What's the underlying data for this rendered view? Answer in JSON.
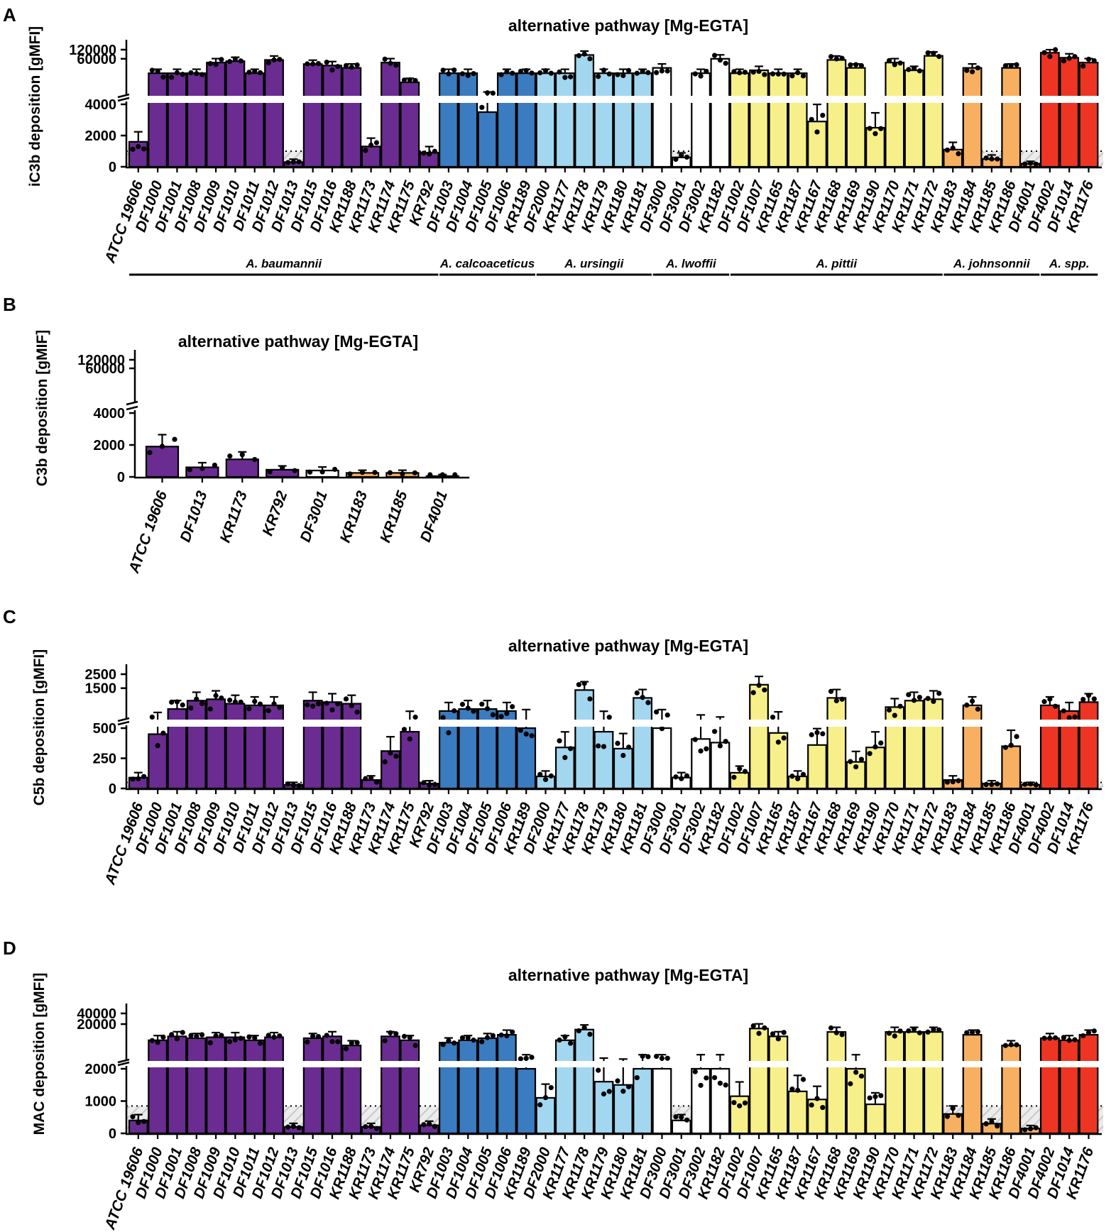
{
  "colors": {
    "baumannii": "#6a2c91",
    "calcoaceticus": "#3b7bc0",
    "ursingii": "#a3d7f0",
    "lwoffii": "#ffffff",
    "pittii": "#f7f08a",
    "johnsonnii": "#f7b062",
    "spp": "#ee3524",
    "axis": "#000000",
    "shade": "#d8d8d8"
  },
  "panels": [
    {
      "letter": "A"
    },
    {
      "letter": "B"
    },
    {
      "letter": "C"
    },
    {
      "letter": "D"
    }
  ],
  "species_groups": [
    {
      "name": "A. baumannii",
      "first": 0,
      "last": 15
    },
    {
      "name": "A. calcoaceticus",
      "first": 16,
      "last": 20
    },
    {
      "name": "A. ursingii",
      "first": 21,
      "last": 26
    },
    {
      "name": "A. lwoffii",
      "first": 27,
      "last": 30
    },
    {
      "name": "A. pittii",
      "first": 31,
      "last": 41
    },
    {
      "name": "A. johnsonnii",
      "first": 42,
      "last": 46
    },
    {
      "name": "A. spp.",
      "first": 47,
      "last": 49
    }
  ],
  "chart_data": [
    {
      "type": "bar",
      "panel": "A",
      "title": "alternative pathway [Mg-EGTA]",
      "xlabel": "",
      "ylabel": "iC3b deposition [gMFI]",
      "axis_break": true,
      "lower_ticks": [
        0,
        2000,
        4000
      ],
      "upper_ticks": [
        60000,
        120000
      ],
      "threshold": 1000,
      "species_labels_shown": true,
      "categories": [
        "ATCC 19606",
        "DF1000",
        "DF1001",
        "DF1008",
        "DF1009",
        "DF1010",
        "DF1011",
        "DF1012",
        "DF1013",
        "DF1015",
        "DF1016",
        "KR1188",
        "KR1173",
        "KR1174",
        "KR1175",
        "KR792",
        "DF1003",
        "DF1004",
        "DF1005",
        "DF1006",
        "KR1189",
        "DF2000",
        "KR1177",
        "KR1178",
        "KR1179",
        "KR1180",
        "KR1181",
        "DF3000",
        "DF3001",
        "DF3002",
        "KR1182",
        "DF1002",
        "DF1007",
        "KR1165",
        "KR1187",
        "KR1167",
        "KR1168",
        "KR1169",
        "KR1190",
        "KR1170",
        "KR1171",
        "KR1172",
        "KR1183",
        "KR1184",
        "KR1185",
        "KR1186",
        "DF4001",
        "DF4002",
        "DF1014",
        "KR1176"
      ],
      "group": [
        "baumannii",
        "baumannii",
        "baumannii",
        "baumannii",
        "baumannii",
        "baumannii",
        "baumannii",
        "baumannii",
        "baumannii",
        "baumannii",
        "baumannii",
        "baumannii",
        "baumannii",
        "baumannii",
        "baumannii",
        "baumannii",
        "calcoaceticus",
        "calcoaceticus",
        "calcoaceticus",
        "calcoaceticus",
        "calcoaceticus",
        "ursingii",
        "ursingii",
        "ursingii",
        "ursingii",
        "ursingii",
        "ursingii",
        "lwoffii",
        "lwoffii",
        "lwoffii",
        "lwoffii",
        "pittii",
        "pittii",
        "pittii",
        "pittii",
        "pittii",
        "pittii",
        "pittii",
        "pittii",
        "pittii",
        "pittii",
        "pittii",
        "johnsonnii",
        "johnsonnii",
        "johnsonnii",
        "johnsonnii",
        "johnsonnii",
        "spp",
        "spp",
        "spp"
      ],
      "values": [
        1600,
        20000,
        20000,
        20000,
        45000,
        50000,
        20000,
        55000,
        300,
        40000,
        36000,
        30000,
        1300,
        45000,
        10000,
        900,
        20000,
        20000,
        3500,
        20000,
        20000,
        20000,
        20000,
        80000,
        20000,
        20000,
        20000,
        30000,
        600,
        20000,
        60000,
        20000,
        25000,
        20000,
        20000,
        2900,
        55000,
        30000,
        2500,
        45000,
        25000,
        75000,
        1100,
        30000,
        500,
        30000,
        200,
        95000,
        65000,
        45000
      ]
    },
    {
      "type": "bar",
      "panel": "B",
      "title": "alternative pathway [Mg-EGTA]",
      "xlabel": "",
      "ylabel": "C3b deposition [gMIF]",
      "axis_break": true,
      "lower_ticks": [
        0,
        2000,
        4000
      ],
      "upper_ticks": [
        60000,
        120000
      ],
      "categories": [
        "ATCC 19606",
        "DF1013",
        "KR1173",
        "KR792",
        "DF3001",
        "KR1183",
        "KR1185",
        "DF4001"
      ],
      "group": [
        "baumannii",
        "baumannii",
        "baumannii",
        "baumannii",
        "lwoffii",
        "johnsonnii",
        "johnsonnii",
        "johnsonnii"
      ],
      "values": [
        1900,
        600,
        1100,
        450,
        400,
        250,
        250,
        50
      ]
    },
    {
      "type": "bar",
      "panel": "C",
      "title": "alternative pathway [Mg-EGTA]",
      "xlabel": "",
      "ylabel": "C5b deposition [gMFI]",
      "axis_break": true,
      "lower_ticks": [
        0,
        250,
        500
      ],
      "upper_ticks": [
        1500,
        2500
      ],
      "threshold": 50,
      "categories": [
        "ATCC 19606",
        "DF1000",
        "DF1001",
        "DF1008",
        "DF1009",
        "DF1010",
        "DF1011",
        "DF1012",
        "DF1013",
        "DF1015",
        "DF1016",
        "KR1188",
        "KR1173",
        "KR1174",
        "KR1175",
        "KR792",
        "DF1003",
        "DF1004",
        "DF1005",
        "DF1006",
        "KR1189",
        "DF2000",
        "KR1177",
        "KR1178",
        "KR1179",
        "KR1180",
        "KR1181",
        "DF3000",
        "DF3001",
        "DF3002",
        "KR1182",
        "DF1002",
        "DF1007",
        "KR1165",
        "KR1187",
        "KR1167",
        "KR1168",
        "KR1169",
        "KR1190",
        "KR1170",
        "KR1171",
        "KR1172",
        "KR1183",
        "KR1184",
        "KR1185",
        "KR1186",
        "DF4001",
        "DF4002",
        "DF1014",
        "KR1176"
      ],
      "group": [
        "baumannii",
        "baumannii",
        "baumannii",
        "baumannii",
        "baumannii",
        "baumannii",
        "baumannii",
        "baumannii",
        "baumannii",
        "baumannii",
        "baumannii",
        "baumannii",
        "baumannii",
        "baumannii",
        "baumannii",
        "baumannii",
        "calcoaceticus",
        "calcoaceticus",
        "calcoaceticus",
        "calcoaceticus",
        "calcoaceticus",
        "ursingii",
        "ursingii",
        "ursingii",
        "ursingii",
        "ursingii",
        "ursingii",
        "lwoffii",
        "lwoffii",
        "lwoffii",
        "lwoffii",
        "pittii",
        "pittii",
        "pittii",
        "pittii",
        "pittii",
        "pittii",
        "pittii",
        "pittii",
        "pittii",
        "pittii",
        "pittii",
        "johnsonnii",
        "johnsonnii",
        "johnsonnii",
        "johnsonnii",
        "johnsonnii",
        "spp",
        "spp",
        "spp"
      ],
      "values": [
        90,
        450,
        700,
        950,
        1000,
        850,
        800,
        800,
        30,
        950,
        900,
        850,
        70,
        310,
        470,
        40,
        650,
        700,
        700,
        650,
        500,
        100,
        340,
        1400,
        470,
        330,
        1050,
        500,
        90,
        410,
        380,
        130,
        1700,
        460,
        100,
        360,
        1050,
        220,
        340,
        750,
        950,
        1000,
        70,
        800,
        40,
        350,
        30,
        800,
        650,
        900
      ]
    },
    {
      "type": "bar",
      "panel": "D",
      "title": "alternative pathway [Mg-EGTA]",
      "xlabel": "",
      "ylabel": "MAC deposition [gMFI]",
      "axis_break": true,
      "lower_ticks": [
        0,
        1000,
        2000
      ],
      "upper_ticks": [
        20000,
        40000
      ],
      "threshold": 850,
      "categories": [
        "ATCC 19606",
        "DF1000",
        "DF1001",
        "DF1008",
        "DF1009",
        "DF1010",
        "DF1011",
        "DF1012",
        "DF1013",
        "DF1015",
        "DF1016",
        "KR1188",
        "KR1173",
        "KR1174",
        "KR1175",
        "KR792",
        "DF1003",
        "DF1004",
        "DF1005",
        "DF1006",
        "KR1189",
        "DF2000",
        "KR1177",
        "KR1178",
        "KR1179",
        "KR1180",
        "KR1181",
        "DF3000",
        "DF3001",
        "DF3002",
        "KR1182",
        "DF1002",
        "DF1007",
        "KR1165",
        "KR1187",
        "KR1167",
        "KR1168",
        "KR1169",
        "KR1190",
        "KR1170",
        "KR1171",
        "KR1172",
        "KR1183",
        "KR1184",
        "KR1185",
        "KR1186",
        "DF4001",
        "DF4002",
        "DF1014",
        "KR1176"
      ],
      "group": [
        "baumannii",
        "baumannii",
        "baumannii",
        "baumannii",
        "baumannii",
        "baumannii",
        "baumannii",
        "baumannii",
        "baumannii",
        "baumannii",
        "baumannii",
        "baumannii",
        "baumannii",
        "baumannii",
        "baumannii",
        "baumannii",
        "calcoaceticus",
        "calcoaceticus",
        "calcoaceticus",
        "calcoaceticus",
        "calcoaceticus",
        "ursingii",
        "ursingii",
        "ursingii",
        "ursingii",
        "ursingii",
        "ursingii",
        "lwoffii",
        "lwoffii",
        "lwoffii",
        "lwoffii",
        "pittii",
        "pittii",
        "pittii",
        "pittii",
        "pittii",
        "pittii",
        "pittii",
        "pittii",
        "pittii",
        "pittii",
        "pittii",
        "johnsonnii",
        "johnsonnii",
        "johnsonnii",
        "johnsonnii",
        "johnsonnii",
        "spp",
        "spp",
        "spp"
      ],
      "values": [
        400,
        7000,
        9000,
        8000,
        8500,
        8500,
        7000,
        8500,
        200,
        8000,
        9000,
        5000,
        200,
        9000,
        7000,
        250,
        6000,
        7000,
        8000,
        10000,
        2000,
        1100,
        7000,
        14000,
        1600,
        1500,
        2000,
        2000,
        400,
        2000,
        2000,
        1150,
        15000,
        9000,
        1300,
        1050,
        12000,
        2000,
        900,
        12000,
        12000,
        12000,
        600,
        10000,
        300,
        5000,
        150,
        8000,
        7000,
        10000
      ]
    }
  ]
}
